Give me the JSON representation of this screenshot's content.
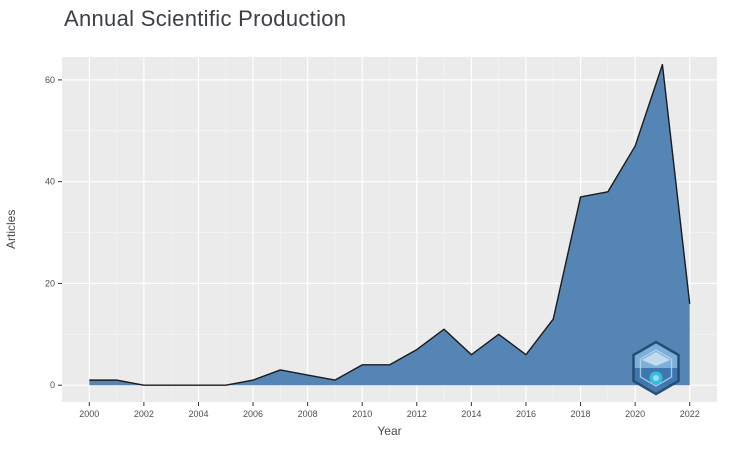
{
  "chart_data": {
    "type": "area",
    "title": "Annual Scientific Production",
    "xlabel": "Year",
    "ylabel": "Articles",
    "x": [
      2000,
      2001,
      2002,
      2003,
      2004,
      2005,
      2006,
      2007,
      2008,
      2009,
      2010,
      2011,
      2012,
      2013,
      2014,
      2015,
      2016,
      2017,
      2018,
      2019,
      2020,
      2021,
      2022
    ],
    "values": [
      1,
      1,
      0,
      0,
      0,
      0,
      1,
      3,
      2,
      1,
      4,
      4,
      7,
      11,
      6,
      10,
      6,
      13,
      37,
      38,
      47,
      63,
      16
    ],
    "x_ticks": [
      2000,
      2002,
      2004,
      2006,
      2008,
      2010,
      2012,
      2014,
      2016,
      2018,
      2020,
      2022
    ],
    "x_minor": [
      2001,
      2003,
      2005,
      2007,
      2009,
      2011,
      2013,
      2015,
      2017,
      2019,
      2021
    ],
    "y_ticks": [
      0,
      20,
      40,
      60
    ],
    "y_minor": [
      10,
      30,
      50
    ],
    "xlim": [
      1999,
      2023
    ],
    "ylim": [
      -3.3,
      64.5
    ],
    "grid": true,
    "legend": "none",
    "colors": {
      "panel_bg": "#EBEBEB",
      "grid_major": "#FFFFFF",
      "grid_minor": "#F5F5F5",
      "area_fill": "#5585B5",
      "line": "#1B1B1B",
      "tick_text": "#4D4D4D",
      "title_text": "#3B3F46"
    }
  },
  "watermark": {
    "name": "bibliometrix-hexagon-logo"
  }
}
